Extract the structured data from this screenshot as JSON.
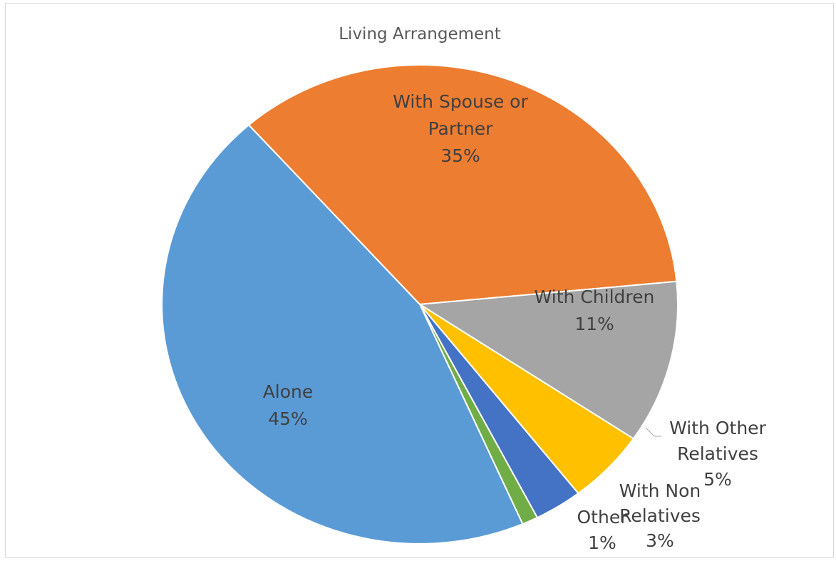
{
  "chart_data": {
    "type": "pie",
    "title": "Living Arrangement",
    "slices": [
      {
        "name": "With Spouse or Partner",
        "label_lines": [
          "With Spouse or",
          "Partner"
        ],
        "value": 35,
        "pct_label": "35%",
        "color": "#ed7d31"
      },
      {
        "name": "With Children",
        "label_lines": [
          "With Children"
        ],
        "value": 11,
        "pct_label": "11%",
        "color": "#a5a5a5"
      },
      {
        "name": "With Other Relatives",
        "label_lines": [
          "With Other",
          "Relatives"
        ],
        "value": 5,
        "pct_label": "5%",
        "color": "#ffc000"
      },
      {
        "name": "With Non Relatives",
        "label_lines": [
          "With Non",
          "Relatives"
        ],
        "value": 3,
        "pct_label": "3%",
        "color": "#4472c4"
      },
      {
        "name": "Other",
        "label_lines": [
          "Other"
        ],
        "value": 1,
        "pct_label": "1%",
        "color": "#70ad47"
      },
      {
        "name": "Alone",
        "label_lines": [
          "Alone"
        ],
        "value": 45,
        "pct_label": "45%",
        "color": "#5b9bd5"
      }
    ],
    "legend": "none",
    "data_labels": "category and percentage"
  }
}
